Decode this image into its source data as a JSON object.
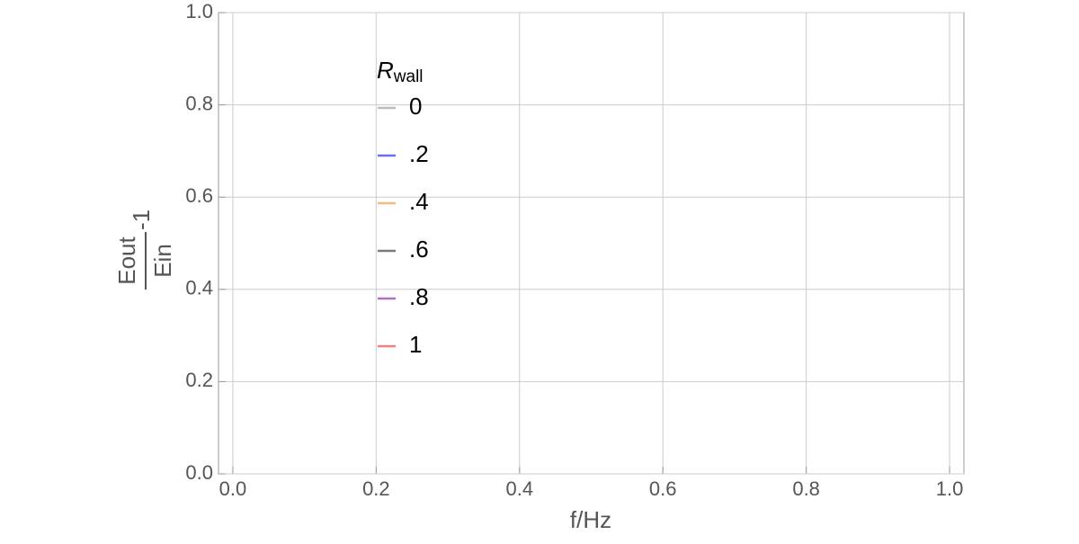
{
  "chart_data": {
    "type": "line",
    "xlabel": "f/Hz",
    "ylabel": {
      "numerator": "Eout",
      "denominator": "Ein",
      "suffix": "-1"
    },
    "legend_title": {
      "symbol": "R",
      "subscript": "wall"
    },
    "x": [],
    "series": [
      {
        "name": "0",
        "color": "#bdbdbd",
        "values": []
      },
      {
        "name": ".2",
        "color": "#6a6ff0",
        "values": []
      },
      {
        "name": ".4",
        "color": "#f6ba7c",
        "values": []
      },
      {
        "name": ".6",
        "color": "#7a7a7a",
        "values": []
      },
      {
        "name": ".8",
        "color": "#b36cc4",
        "values": []
      },
      {
        "name": "1",
        "color": "#f07f7f",
        "values": []
      }
    ],
    "xlim": [
      -0.02,
      1.02
    ],
    "ylim": [
      0,
      1
    ],
    "xticks": [
      {
        "value": 0,
        "label": "0.0"
      },
      0.2,
      0.4,
      0.6,
      0.8,
      {
        "value": 1,
        "label": "1.0"
      }
    ],
    "yticks": [
      {
        "value": 0,
        "label": "0.0"
      },
      0.2,
      0.4,
      0.6,
      0.8,
      {
        "value": 1,
        "label": "1.0"
      }
    ],
    "grid": true
  }
}
